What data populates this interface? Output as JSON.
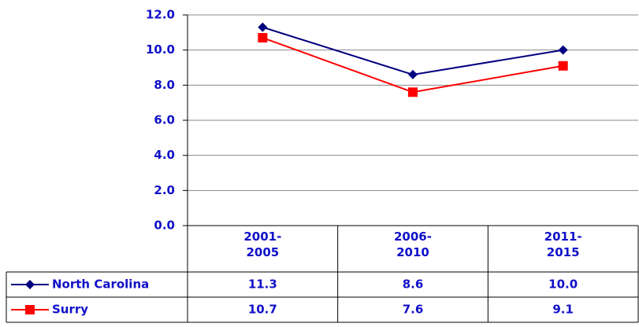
{
  "chart_data": {
    "type": "line",
    "categories": [
      "2001-2005",
      "2006-2010",
      "2011-2015"
    ],
    "series": [
      {
        "name": "North Carolina",
        "color": "#000080",
        "marker": "diamond",
        "values": [
          11.3,
          8.6,
          10.0
        ],
        "value_labels": [
          "11.3",
          "8.6",
          "10.0"
        ]
      },
      {
        "name": "Surry",
        "color": "#ff0000",
        "marker": "square",
        "values": [
          10.7,
          7.6,
          9.1
        ],
        "value_labels": [
          "10.7",
          "7.6",
          "9.1"
        ]
      }
    ],
    "ylim": [
      0,
      12
    ],
    "yticks": [
      {
        "value": 0,
        "label": "0.0"
      },
      {
        "value": 2,
        "label": "2.0"
      },
      {
        "value": 4,
        "label": "4.0"
      },
      {
        "value": 6,
        "label": "6.0"
      },
      {
        "value": 8,
        "label": "8.0"
      },
      {
        "value": 10,
        "label": "10.0"
      },
      {
        "value": 12,
        "label": "12.0"
      }
    ],
    "grid": true
  }
}
